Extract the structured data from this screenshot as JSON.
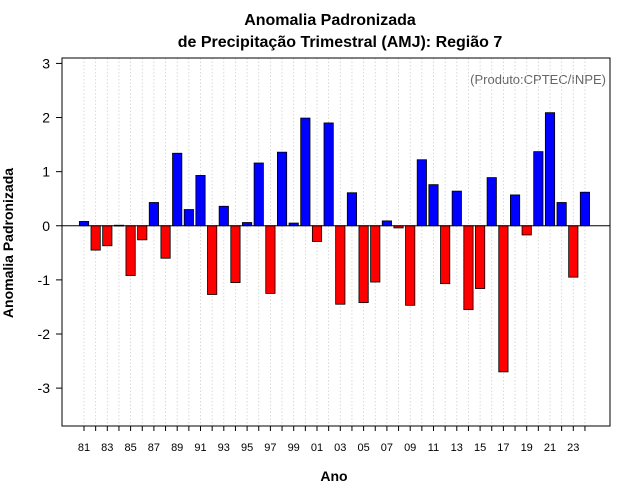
{
  "chart_data": {
    "type": "bar",
    "title": "Anomalia Padronizada",
    "subtitle": "de Precipitação Trimestral (AMJ): Região 7",
    "xlabel": "Ano",
    "ylabel": "Anomalia Padronizada",
    "source_note": "(Produto:CPTEC/INPE)",
    "ylim": [
      -3.7,
      3.1
    ],
    "yticks": [
      3,
      2,
      1,
      0,
      -1,
      -2,
      -3
    ],
    "ytick_labels": [
      "3",
      "2",
      "1",
      "0",
      "-1",
      "-2",
      "-3"
    ],
    "grid": "vertical dotted",
    "categories": [
      "81",
      "82",
      "83",
      "84",
      "85",
      "86",
      "87",
      "88",
      "89",
      "90",
      "91",
      "92",
      "93",
      "94",
      "95",
      "96",
      "97",
      "98",
      "99",
      "00",
      "01",
      "02",
      "03",
      "04",
      "05",
      "06",
      "07",
      "08",
      "09",
      "10",
      "11",
      "12",
      "13",
      "14",
      "15",
      "16",
      "17",
      "18",
      "19",
      "20",
      "21",
      "22",
      "23",
      "24"
    ],
    "xtick_labels": [
      "81",
      "83",
      "85",
      "87",
      "89",
      "91",
      "93",
      "95",
      "97",
      "99",
      "01",
      "03",
      "05",
      "07",
      "09",
      "11",
      "13",
      "15",
      "17",
      "19",
      "21",
      "23"
    ],
    "values": [
      0.08,
      -0.45,
      -0.37,
      0.01,
      -0.92,
      -0.26,
      0.43,
      -0.6,
      1.34,
      0.3,
      0.93,
      -1.27,
      0.36,
      -1.05,
      0.06,
      1.16,
      -1.25,
      1.36,
      0.05,
      1.99,
      -0.29,
      1.9,
      -1.45,
      0.61,
      -1.42,
      -1.04,
      0.09,
      -0.04,
      -1.47,
      1.22,
      0.76,
      -1.07,
      0.64,
      -1.55,
      -1.16,
      0.89,
      -2.7,
      0.57,
      -0.17,
      1.37,
      2.09,
      0.43,
      -0.95,
      0.62
    ],
    "colors": {
      "positive": "#0000ff",
      "negative": "#ff0000",
      "zero_line": "#000000",
      "grid": "#d0d0d0"
    }
  }
}
